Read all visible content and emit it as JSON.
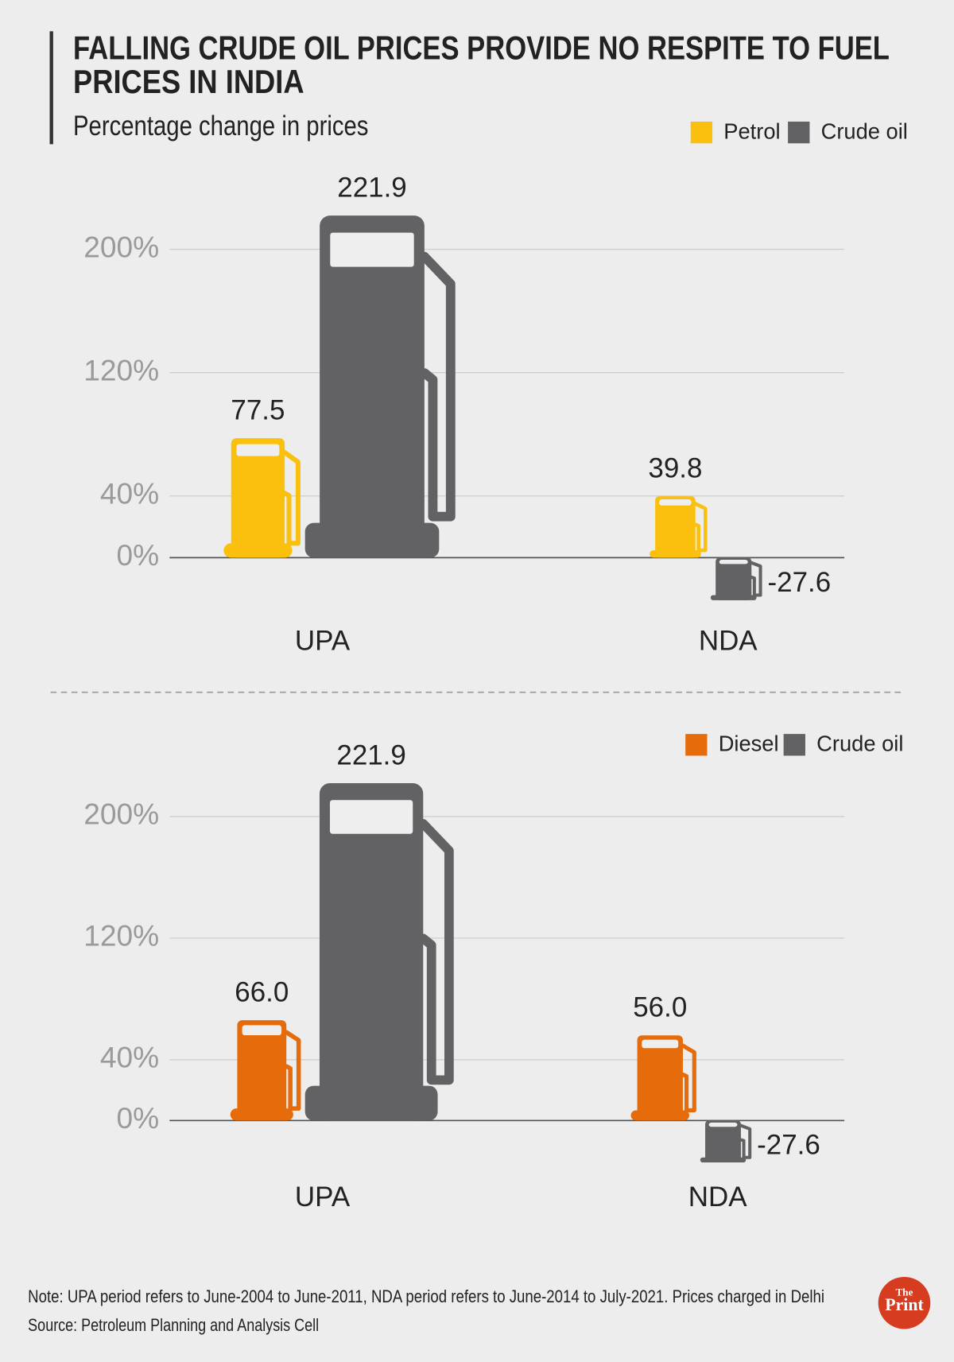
{
  "title": [
    "FALLING CRUDE OIL PRICES PROVIDE NO RESPITE TO FUEL",
    "PRICES IN INDIA"
  ],
  "subtitle": "Percentage change in prices",
  "chart_data": [
    {
      "type": "bar",
      "categories": [
        "UPA",
        "NDA"
      ],
      "series": [
        {
          "name": "Petrol",
          "color": "#fbbf0e",
          "values": [
            77.5,
            39.8
          ]
        },
        {
          "name": "Crude oil",
          "color": "#626264",
          "values": [
            221.9,
            -27.6
          ]
        }
      ],
      "ylim": [
        -40,
        240
      ],
      "yticks": [
        {
          "value": 0,
          "label": "0%"
        },
        {
          "value": 40,
          "label": "40%"
        },
        {
          "value": 120,
          "label": "120%"
        },
        {
          "value": 200,
          "label": "200%"
        }
      ],
      "grid": true
    },
    {
      "type": "bar",
      "categories": [
        "UPA",
        "NDA"
      ],
      "series": [
        {
          "name": "Diesel",
          "color": "#e56b0b",
          "values": [
            66,
            56
          ],
          "value_labels": [
            "66.0",
            "56.0"
          ]
        },
        {
          "name": "Crude oil",
          "color": "#626264",
          "values": [
            221.9,
            -27.6
          ]
        }
      ],
      "ylim": [
        -40,
        240
      ],
      "yticks": [
        {
          "value": 0,
          "label": "0%"
        },
        {
          "value": 40,
          "label": "40%"
        },
        {
          "value": 120,
          "label": "120%"
        },
        {
          "value": 200,
          "label": "200%"
        }
      ],
      "grid": true
    }
  ],
  "note": "Note: UPA period refers to June-2004 to June-2011, NDA period refers to June-2014 to July-2021. Prices charged in Delhi",
  "source": "Source: Petroleum Planning and Analysis Cell",
  "logo": [
    "The",
    "Print"
  ]
}
